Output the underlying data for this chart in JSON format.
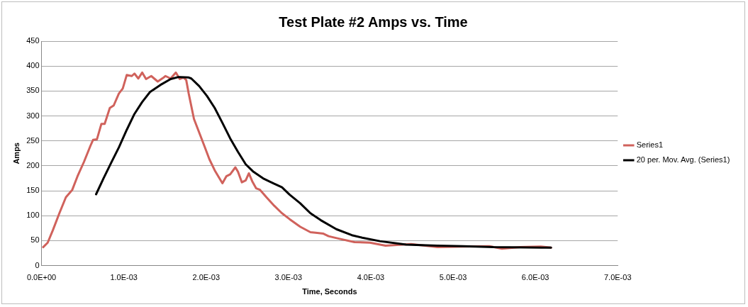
{
  "chart_data": {
    "type": "line",
    "title": "Test Plate #2 Amps vs. Time",
    "xlabel": "Time, Seconds",
    "ylabel": "Amps",
    "xlim": [
      0,
      0.007
    ],
    "xticks": [
      {
        "value": 0,
        "label": "0.0E+00"
      },
      {
        "value": 0.001,
        "label": "1.0E-03"
      },
      {
        "value": 0.002,
        "label": "2.0E-03"
      },
      {
        "value": 0.003,
        "label": "3.0E-03"
      },
      {
        "value": 0.004,
        "label": "4.0E-03"
      },
      {
        "value": 0.005,
        "label": "5.0E-03"
      },
      {
        "value": 0.006,
        "label": "6.0E-03"
      },
      {
        "value": 0.007,
        "label": "7.0E-03"
      }
    ],
    "ylim": [
      0,
      450
    ],
    "yticks": [
      0,
      50,
      100,
      150,
      200,
      250,
      300,
      350,
      400,
      450
    ],
    "grid": "y",
    "legend": "right",
    "marker": "none",
    "line_style": "solid",
    "series": [
      {
        "name": "Series1",
        "color": "#d0625c",
        "x": [
          2e-05,
          7.5e-05,
          0.000138,
          0.000217,
          0.000296,
          0.000374,
          0.000437,
          0.000516,
          0.000594,
          0.000626,
          0.000673,
          0.000727,
          0.000767,
          0.00083,
          0.000877,
          0.00094,
          0.000987,
          0.001035,
          0.001097,
          0.001129,
          0.001176,
          0.001223,
          0.00127,
          0.001333,
          0.001412,
          0.001475,
          0.001506,
          0.001569,
          0.001632,
          0.001679,
          0.001726,
          0.001758,
          0.001788,
          0.001852,
          0.001915,
          0.001978,
          0.00204,
          0.002104,
          0.002198,
          0.002245,
          0.002292,
          0.002355,
          0.002387,
          0.002434,
          0.002481,
          0.002519,
          0.00256,
          0.002607,
          0.002654,
          0.002733,
          0.002827,
          0.002921,
          0.003015,
          0.003142,
          0.003267,
          0.00333,
          0.003425,
          0.003487,
          0.003613,
          0.003802,
          0.00399,
          0.00418,
          0.00449,
          0.00481,
          0.00512,
          0.00544,
          0.005594,
          0.005814,
          0.006066,
          0.00619
        ],
        "values": [
          37,
          46,
          71,
          105,
          137,
          152,
          179,
          208,
          240,
          252,
          253,
          284,
          284,
          316,
          321,
          345,
          355,
          382,
          380,
          385,
          375,
          387,
          374,
          380,
          369,
          376,
          380,
          375,
          387,
          374,
          377,
          372,
          345,
          294,
          267,
          240,
          213,
          191,
          165,
          179,
          183,
          197,
          188,
          167,
          171,
          185,
          169,
          155,
          152,
          137,
          120,
          105,
          93,
          78,
          67,
          66,
          64,
          59,
          54,
          47,
          46,
          40,
          43,
          37,
          38,
          39,
          34,
          37,
          38,
          36
        ]
      },
      {
        "name": "20 per. Mov. Avg. (Series1)",
        "color": "#000000",
        "x": [
          0.000663,
          0.000751,
          0.000846,
          0.00094,
          0.001035,
          0.001129,
          0.001223,
          0.001318,
          0.001443,
          0.001569,
          0.001664,
          0.001789,
          0.00182,
          0.001915,
          0.00201,
          0.002104,
          0.002198,
          0.002292,
          0.002387,
          0.002481,
          0.002575,
          0.002701,
          0.002827,
          0.002921,
          0.003015,
          0.003142,
          0.003267,
          0.003393,
          0.003582,
          0.00377,
          0.003896,
          0.00411,
          0.00443,
          0.00481,
          0.00512,
          0.00549,
          0.00619
        ],
        "values": [
          143,
          174,
          206,
          237,
          272,
          304,
          328,
          348,
          362,
          374,
          378,
          377,
          375,
          360,
          340,
          316,
          286,
          255,
          228,
          203,
          188,
          174,
          164,
          157,
          142,
          125,
          105,
          91,
          73,
          61,
          56,
          49,
          42,
          40,
          39,
          37,
          36
        ]
      }
    ]
  }
}
